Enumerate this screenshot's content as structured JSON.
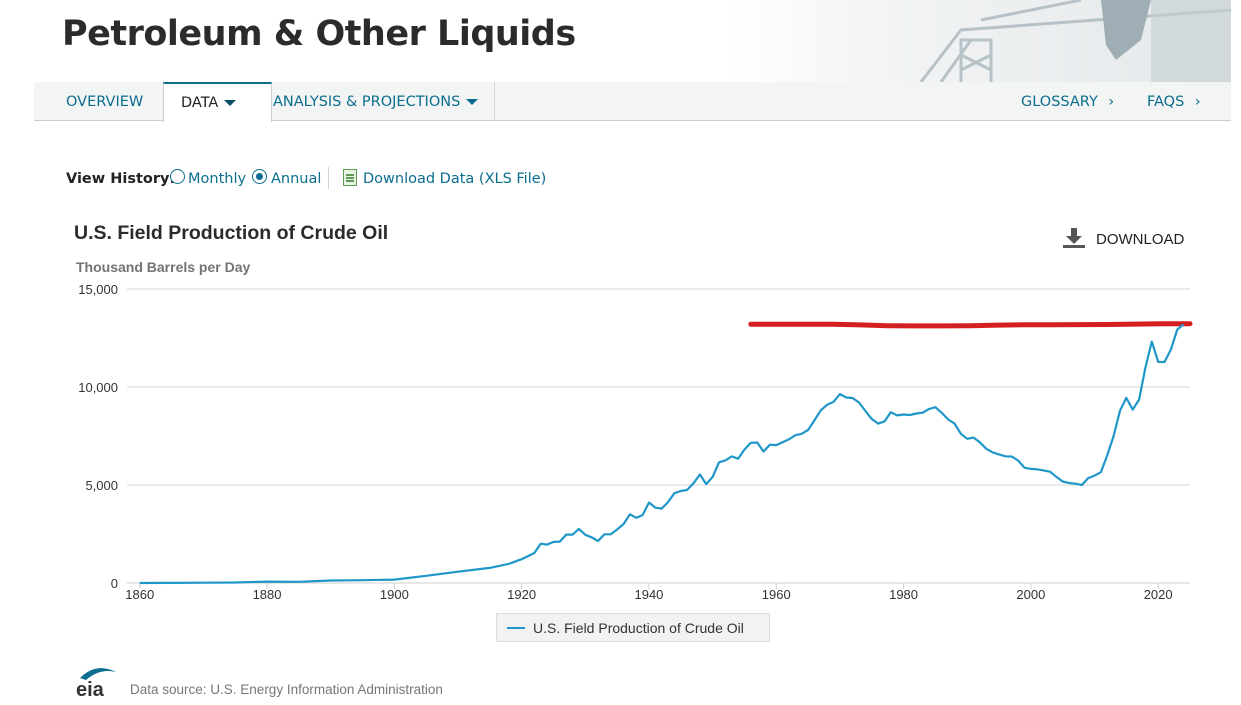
{
  "header": {
    "title": "Petroleum & Other Liquids"
  },
  "nav": {
    "items": [
      {
        "label": "OVERVIEW"
      },
      {
        "label": "DATA"
      },
      {
        "label": "ANALYSIS & PROJECTIONS"
      }
    ],
    "right": [
      {
        "label": "GLOSSARY"
      },
      {
        "label": "FAQS"
      }
    ],
    "chevron": "›"
  },
  "view_history": {
    "label": "View History:",
    "options": [
      "Monthly",
      "Annual"
    ],
    "selected": "Annual",
    "download_link": "Download Data (XLS File)"
  },
  "download_button": {
    "label": "DOWNLOAD",
    "icon": "download-icon"
  },
  "footer": {
    "source": "Data source: U.S. Energy Information Administration",
    "logo_text": "eia"
  },
  "colors": {
    "series": "#1f97c8",
    "annotation": "#d42020",
    "link": "#0b6e8e"
  },
  "chart_data": {
    "type": "line",
    "title": "U.S. Field Production of Crude Oil",
    "ylabel": "Thousand Barrels per Day",
    "xlabel": "",
    "xlim": [
      1858,
      2025
    ],
    "ylim": [
      0,
      15000
    ],
    "x_ticks": [
      1860,
      1880,
      1900,
      1920,
      1940,
      1960,
      1980,
      2000,
      2020
    ],
    "y_ticks": [
      0,
      5000,
      10000,
      15000
    ],
    "y_tick_labels": [
      "0",
      "5,000",
      "10,000",
      "15,000"
    ],
    "legend": "bottom-center",
    "series": [
      {
        "name": "U.S. Field Production of Crude Oil",
        "x": [
          1860,
          1865,
          1870,
          1875,
          1880,
          1885,
          1890,
          1895,
          1900,
          1905,
          1910,
          1915,
          1918,
          1920,
          1922,
          1923,
          1924,
          1925,
          1926,
          1927,
          1928,
          1929,
          1930,
          1931,
          1932,
          1933,
          1934,
          1935,
          1936,
          1937,
          1938,
          1939,
          1940,
          1941,
          1942,
          1943,
          1944,
          1945,
          1946,
          1947,
          1948,
          1949,
          1950,
          1951,
          1952,
          1953,
          1954,
          1955,
          1956,
          1957,
          1958,
          1959,
          1960,
          1961,
          1962,
          1963,
          1964,
          1965,
          1966,
          1967,
          1968,
          1969,
          1970,
          1971,
          1972,
          1973,
          1974,
          1975,
          1976,
          1977,
          1978,
          1979,
          1980,
          1981,
          1982,
          1983,
          1984,
          1985,
          1986,
          1987,
          1988,
          1989,
          1990,
          1991,
          1992,
          1993,
          1994,
          1995,
          1996,
          1997,
          1998,
          1999,
          2000,
          2001,
          2002,
          2003,
          2004,
          2005,
          2006,
          2007,
          2008,
          2009,
          2010,
          2011,
          2012,
          2013,
          2014,
          2015,
          2016,
          2017,
          2018,
          2019,
          2020,
          2021,
          2022,
          2023,
          2024
        ],
        "values": [
          1,
          7,
          15,
          25,
          72,
          60,
          126,
          145,
          174,
          369,
          574,
          770,
          980,
          1214,
          1530,
          2007,
          1961,
          2097,
          2112,
          2469,
          2469,
          2760,
          2460,
          2332,
          2145,
          2483,
          2484,
          2730,
          3006,
          3505,
          3327,
          3466,
          4107,
          3842,
          3798,
          4125,
          4584,
          4695,
          4751,
          5088,
          5535,
          5046,
          5407,
          6158,
          6256,
          6458,
          6342,
          6807,
          7151,
          7170,
          6710,
          7054,
          7035,
          7183,
          7332,
          7542,
          7614,
          7804,
          8295,
          8810,
          9096,
          9238,
          9637,
          9463,
          9441,
          9208,
          8774,
          8375,
          8132,
          8245,
          8707,
          8552,
          8597,
          8572,
          8649,
          8688,
          8879,
          8971,
          8680,
          8349,
          8140,
          7613,
          7355,
          7417,
          7171,
          6847,
          6662,
          6560,
          6465,
          6452,
          6252,
          5881,
          5822,
          5801,
          5746,
          5681,
          5419,
          5178,
          5102,
          5064,
          5000,
          5353,
          5482,
          5652,
          6523,
          7494,
          8793,
          9442,
          8845,
          9358,
          10991,
          12315,
          11283,
          11273,
          11911,
          12934,
          13200
        ]
      }
    ],
    "annotation": {
      "type": "hand-drawn line",
      "color": "#d42020",
      "x_range": [
        1956,
        2025
      ],
      "approx_value": 13200
    }
  }
}
